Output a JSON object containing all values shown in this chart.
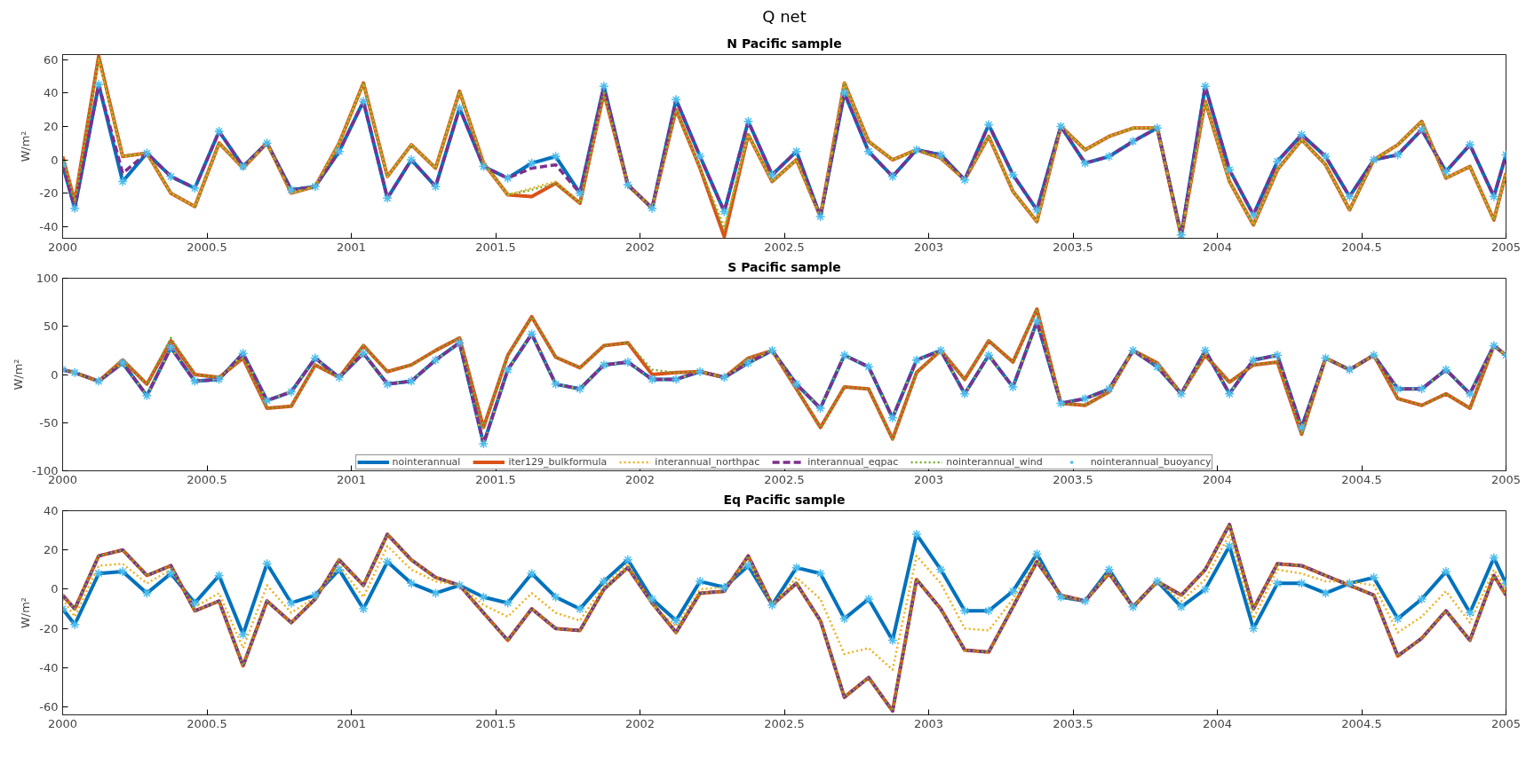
{
  "chart_data": [
    {
      "type": "line",
      "title": "Q net",
      "subtitle": "N Pacific sample",
      "ylabel": "W/m²",
      "x": [
        2000,
        2000.042,
        2000.125,
        2000.208,
        2000.292,
        2000.375,
        2000.458,
        2000.542,
        2000.625,
        2000.708,
        2000.792,
        2000.875,
        2000.958,
        2001.042,
        2001.125,
        2001.208,
        2001.292,
        2001.375,
        2001.458,
        2001.542,
        2001.625,
        2001.708,
        2001.792,
        2001.875,
        2001.958,
        2002.042,
        2002.125,
        2002.208,
        2002.292,
        2002.375,
        2002.458,
        2002.542,
        2002.625,
        2002.708,
        2002.792,
        2002.875,
        2002.958,
        2003.042,
        2003.125,
        2003.208,
        2003.292,
        2003.375,
        2003.458,
        2003.542,
        2003.625,
        2003.708,
        2003.792,
        2003.875,
        2003.958,
        2004.042,
        2004.125,
        2004.208,
        2004.292,
        2004.375,
        2004.458,
        2004.542,
        2004.625,
        2004.708,
        2004.792,
        2004.875,
        2004.958,
        2005
      ],
      "xlim": [
        2000,
        2005
      ],
      "xticks": [
        2000,
        2000.5,
        2001,
        2001.5,
        2002,
        2002.5,
        2003,
        2003.5,
        2004,
        2004.5,
        2005
      ],
      "ylim": [
        -47,
        63
      ],
      "yticks": [
        -40,
        -20,
        0,
        20,
        40,
        60
      ],
      "grid": false,
      "series": [
        {
          "color": "#0072bd",
          "line_style": "solid",
          "values": [
            -3,
            -29,
            45,
            -13,
            4,
            -10,
            -17,
            17,
            -4,
            10,
            -18,
            -16,
            5,
            35,
            -23,
            0,
            -16,
            31,
            -4,
            -11,
            -2,
            2,
            -20,
            44,
            -15,
            -29,
            36,
            2,
            -31,
            23,
            -9,
            5,
            -34,
            40,
            5,
            -10,
            6,
            3,
            -12,
            21,
            -9,
            -30,
            20,
            -2,
            2,
            11,
            19,
            -45,
            44,
            -6,
            -33,
            -1,
            15,
            2,
            -22,
            0,
            3,
            18,
            -7,
            9,
            -22,
            3
          ]
        },
        {
          "color": "#d95319",
          "line_style": "solid",
          "values": [
            2,
            -25,
            62,
            2,
            4,
            -20,
            -28,
            10,
            -5,
            10,
            -20,
            -16,
            10,
            46,
            -10,
            9,
            -5,
            41,
            -2,
            -21,
            -22,
            -14,
            -26,
            40,
            -15,
            -29,
            30,
            -5,
            -46,
            15,
            -13,
            0,
            -34,
            46,
            11,
            0,
            6,
            1,
            -12,
            14,
            -19,
            -37,
            20,
            6,
            14,
            19,
            19,
            -46,
            35,
            -13,
            -39,
            -6,
            12,
            -3,
            -30,
            0,
            9,
            23,
            -11,
            -4,
            -36,
            -8
          ]
        },
        {
          "color": "#edb120",
          "line_style": "dotted",
          "values": [
            2,
            -25,
            60,
            2,
            4,
            -20,
            -28,
            10,
            -5,
            10,
            -20,
            -16,
            10,
            46,
            -10,
            9,
            -5,
            41,
            -2,
            -21,
            -17,
            -13,
            -26,
            40,
            -15,
            -29,
            30,
            -5,
            -40,
            15,
            -13,
            0,
            -34,
            46,
            11,
            0,
            6,
            1,
            -12,
            14,
            -19,
            -37,
            20,
            6,
            14,
            19,
            19,
            -46,
            35,
            -13,
            -39,
            -6,
            12,
            -3,
            -30,
            0,
            9,
            23,
            -11,
            -4,
            -36,
            -8
          ]
        },
        {
          "color": "#7e2f8e",
          "line_style": "dashed",
          "values": [
            -3,
            -29,
            45,
            -8,
            4,
            -10,
            -17,
            17,
            -4,
            10,
            -18,
            -16,
            5,
            35,
            -23,
            0,
            -16,
            31,
            -4,
            -11,
            -5,
            -3,
            -20,
            44,
            -15,
            -29,
            36,
            2,
            -31,
            23,
            -9,
            5,
            -34,
            40,
            5,
            -10,
            6,
            3,
            -12,
            21,
            -9,
            -30,
            20,
            -2,
            2,
            11,
            19,
            -45,
            44,
            -6,
            -33,
            -1,
            15,
            2,
            -22,
            0,
            3,
            18,
            -7,
            9,
            -22,
            3
          ]
        },
        {
          "color": "#77ac30",
          "line_style": "dotted",
          "values": [
            2,
            -25,
            62,
            2,
            4,
            -20,
            -28,
            10,
            -5,
            10,
            -20,
            -16,
            10,
            46,
            -10,
            9,
            -5,
            41,
            -2,
            -21,
            -18,
            -14,
            -26,
            40,
            -15,
            -29,
            30,
            -5,
            -42,
            15,
            -13,
            0,
            -34,
            46,
            11,
            0,
            6,
            1,
            -12,
            14,
            -19,
            -37,
            20,
            6,
            14,
            19,
            19,
            -46,
            35,
            -13,
            -39,
            -6,
            12,
            -3,
            -30,
            0,
            9,
            23,
            -11,
            -4,
            -36,
            -8
          ]
        },
        {
          "type": "scatter",
          "marker": "cross",
          "color": "#4dbeee",
          "values": [
            -3,
            -29,
            45,
            -13,
            4,
            -10,
            -17,
            17,
            -4,
            10,
            -18,
            -16,
            5,
            35,
            -23,
            0,
            -16,
            31,
            -4,
            -11,
            -2,
            2,
            -20,
            44,
            -15,
            -29,
            36,
            2,
            -31,
            23,
            -9,
            5,
            -34,
            40,
            5,
            -10,
            6,
            3,
            -12,
            21,
            -9,
            -30,
            20,
            -2,
            2,
            11,
            19,
            -45,
            44,
            -6,
            -33,
            -1,
            15,
            2,
            -22,
            0,
            3,
            18,
            -7,
            9,
            -22,
            3
          ]
        }
      ]
    },
    {
      "type": "line",
      "title": "S Pacific sample",
      "ylabel": "W/m²",
      "x": [
        2000,
        2000.042,
        2000.125,
        2000.208,
        2000.292,
        2000.375,
        2000.458,
        2000.542,
        2000.625,
        2000.708,
        2000.792,
        2000.875,
        2000.958,
        2001.042,
        2001.125,
        2001.208,
        2001.292,
        2001.375,
        2001.458,
        2001.542,
        2001.625,
        2001.708,
        2001.792,
        2001.875,
        2001.958,
        2002.042,
        2002.125,
        2002.208,
        2002.292,
        2002.375,
        2002.458,
        2002.542,
        2002.625,
        2002.708,
        2002.792,
        2002.875,
        2002.958,
        2003.042,
        2003.125,
        2003.208,
        2003.292,
        2003.375,
        2003.458,
        2003.542,
        2003.625,
        2003.708,
        2003.792,
        2003.875,
        2003.958,
        2004.042,
        2004.125,
        2004.208,
        2004.292,
        2004.375,
        2004.458,
        2004.542,
        2004.625,
        2004.708,
        2004.792,
        2004.875,
        2004.958,
        2005
      ],
      "xlim": [
        2000,
        2005
      ],
      "xticks": [
        2000,
        2000.5,
        2001,
        2001.5,
        2002,
        2002.5,
        2003,
        2003.5,
        2004,
        2004.5,
        2005
      ],
      "ylim": [
        -100,
        100
      ],
      "yticks": [
        -100,
        -50,
        0,
        50,
        100
      ],
      "grid": false,
      "legend": "bottom",
      "series": [
        {
          "name": "nointerannual",
          "color": "#0072bd",
          "line_style": "solid",
          "values": [
            5,
            2,
            -7,
            12,
            -22,
            28,
            -7,
            -5,
            22,
            -27,
            -18,
            17,
            -3,
            22,
            -10,
            -7,
            15,
            33,
            -72,
            5,
            42,
            -10,
            -15,
            10,
            13,
            -5,
            -5,
            3,
            -3,
            12,
            25,
            -10,
            -35,
            20,
            8,
            -45,
            15,
            25,
            -20,
            20,
            -13,
            55,
            -30,
            -25,
            -15,
            25,
            8,
            -20,
            25,
            -20,
            15,
            20,
            -55,
            17,
            5,
            20,
            -15,
            -15,
            5,
            -20,
            30,
            20
          ]
        },
        {
          "name": "iter129_bulkformula",
          "color": "#d95319",
          "line_style": "solid",
          "values": [
            5,
            2,
            -7,
            15,
            -10,
            35,
            0,
            -3,
            17,
            -35,
            -33,
            10,
            -3,
            30,
            3,
            10,
            25,
            38,
            -55,
            20,
            60,
            18,
            7,
            30,
            33,
            0,
            2,
            3,
            -3,
            17,
            25,
            -15,
            -55,
            -13,
            -15,
            -67,
            2,
            25,
            -5,
            35,
            13,
            68,
            -30,
            -32,
            -18,
            25,
            12,
            -20,
            20,
            -8,
            10,
            13,
            -62,
            17,
            5,
            20,
            -25,
            -32,
            -20,
            -35,
            30,
            20
          ]
        },
        {
          "name": "interannual_northpac",
          "color": "#edb120",
          "line_style": "dotted",
          "values": [
            5,
            2,
            -7,
            12,
            -22,
            28,
            -7,
            -5,
            22,
            -27,
            -18,
            17,
            -3,
            22,
            -10,
            -7,
            15,
            33,
            -72,
            5,
            42,
            -10,
            -15,
            10,
            13,
            -5,
            -5,
            3,
            -3,
            12,
            25,
            -10,
            -35,
            20,
            8,
            -45,
            15,
            25,
            -20,
            20,
            -13,
            55,
            -30,
            -25,
            -15,
            25,
            8,
            -20,
            25,
            -20,
            15,
            20,
            -55,
            17,
            5,
            20,
            -15,
            -15,
            5,
            -20,
            30,
            20
          ]
        },
        {
          "name": "interannual_eqpac",
          "color": "#7e2f8e",
          "line_style": "dashed",
          "values": [
            5,
            2,
            -7,
            12,
            -22,
            28,
            -7,
            -5,
            22,
            -27,
            -18,
            17,
            -3,
            22,
            -10,
            -7,
            15,
            33,
            -72,
            5,
            42,
            -10,
            -15,
            10,
            13,
            -5,
            -5,
            3,
            -3,
            12,
            25,
            -10,
            -35,
            20,
            8,
            -45,
            15,
            25,
            -20,
            20,
            -13,
            55,
            -30,
            -25,
            -15,
            25,
            8,
            -20,
            25,
            -20,
            15,
            20,
            -55,
            17,
            5,
            20,
            -15,
            -15,
            5,
            -20,
            30,
            20
          ]
        },
        {
          "name": "nointerannual_wind",
          "color": "#77ac30",
          "line_style": "dotted",
          "values": [
            5,
            2,
            -7,
            15,
            -10,
            38,
            0,
            -3,
            17,
            -35,
            -33,
            10,
            -3,
            30,
            3,
            10,
            25,
            38,
            -55,
            20,
            60,
            18,
            7,
            30,
            33,
            5,
            2,
            3,
            -3,
            17,
            25,
            -15,
            -55,
            -13,
            -15,
            -67,
            2,
            25,
            -5,
            35,
            13,
            68,
            -30,
            -32,
            -18,
            25,
            12,
            -20,
            20,
            -8,
            10,
            13,
            -62,
            17,
            5,
            20,
            -25,
            -32,
            -20,
            -35,
            30,
            20
          ]
        },
        {
          "name": "nointerannual_buoyancy",
          "type": "scatter",
          "marker": "cross",
          "color": "#4dbeee",
          "values": [
            5,
            2,
            -7,
            12,
            -22,
            28,
            -7,
            -5,
            22,
            -27,
            -18,
            17,
            -3,
            22,
            -10,
            -7,
            15,
            33,
            -72,
            5,
            42,
            -10,
            -15,
            10,
            13,
            -5,
            -5,
            3,
            -3,
            12,
            25,
            -10,
            -35,
            20,
            8,
            -45,
            15,
            25,
            -20,
            20,
            -13,
            55,
            -30,
            -25,
            -15,
            25,
            8,
            -20,
            25,
            -20,
            15,
            20,
            -55,
            17,
            5,
            20,
            -15,
            -15,
            5,
            -20,
            30,
            20
          ]
        }
      ]
    },
    {
      "type": "line",
      "title": "Eq Pacific sample",
      "ylabel": "W/m²",
      "x": [
        2000,
        2000.042,
        2000.125,
        2000.208,
        2000.292,
        2000.375,
        2000.458,
        2000.542,
        2000.625,
        2000.708,
        2000.792,
        2000.875,
        2000.958,
        2001.042,
        2001.125,
        2001.208,
        2001.292,
        2001.375,
        2001.458,
        2001.542,
        2001.625,
        2001.708,
        2001.792,
        2001.875,
        2001.958,
        2002.042,
        2002.125,
        2002.208,
        2002.292,
        2002.375,
        2002.458,
        2002.542,
        2002.625,
        2002.708,
        2002.792,
        2002.875,
        2002.958,
        2003.042,
        2003.125,
        2003.208,
        2003.292,
        2003.375,
        2003.458,
        2003.542,
        2003.625,
        2003.708,
        2003.792,
        2003.875,
        2003.958,
        2004.042,
        2004.125,
        2004.208,
        2004.292,
        2004.375,
        2004.458,
        2004.542,
        2004.625,
        2004.708,
        2004.792,
        2004.875,
        2004.958,
        2005
      ],
      "xlim": [
        2000,
        2005
      ],
      "xticks": [
        2000,
        2000.5,
        2001,
        2001.5,
        2002,
        2002.5,
        2003,
        2003.5,
        2004,
        2004.5,
        2005
      ],
      "ylim": [
        -64,
        40
      ],
      "yticks": [
        -60,
        -40,
        -20,
        0,
        20,
        40
      ],
      "grid": false,
      "series": [
        {
          "color": "#0072bd",
          "line_style": "solid",
          "values": [
            -10,
            -18,
            8,
            9,
            -2,
            8,
            -7,
            7,
            -23,
            13,
            -7,
            -3,
            10,
            -10,
            14,
            3,
            -2,
            2,
            -4,
            -7,
            8,
            -4,
            -10,
            4,
            15,
            -5,
            -16,
            4,
            1,
            12,
            -8,
            11,
            8,
            -15,
            -5,
            -26,
            28,
            10,
            -11,
            -11,
            -1,
            18,
            -4,
            -6,
            10,
            -9,
            4,
            -9,
            0,
            22,
            -20,
            3,
            3,
            -2,
            3,
            6,
            -15,
            -5,
            9,
            -12,
            16,
            3
          ]
        },
        {
          "color": "#d95319",
          "line_style": "solid",
          "values": [
            -3,
            -10,
            17,
            20,
            7,
            12,
            -11,
            -6,
            -39,
            -6,
            -17,
            -5,
            15,
            2,
            28,
            15,
            6,
            2,
            -12,
            -26,
            -10,
            -20,
            -21,
            0,
            11,
            -7,
            -22,
            -2,
            -1,
            17,
            -8,
            3,
            -16,
            -55,
            -45,
            -62,
            5,
            -10,
            -31,
            -32,
            -9,
            14,
            -3,
            -6,
            8,
            -9,
            4,
            -3,
            10,
            33,
            -10,
            13,
            12,
            7,
            2,
            -3,
            -34,
            -25,
            -11,
            -26,
            7,
            -3
          ]
        },
        {
          "color": "#edb120",
          "line_style": "dotted",
          "values": [
            -5,
            -14,
            12,
            13,
            3,
            10,
            -9,
            -2,
            -30,
            2,
            -12,
            -4,
            12,
            -4,
            22,
            10,
            4,
            2,
            -8,
            -14,
            -2,
            -12,
            -16,
            2,
            13,
            -8,
            -19,
            0,
            1,
            14,
            -8,
            6,
            -5,
            -33,
            -30,
            -41,
            17,
            3,
            -20,
            -21,
            -5,
            16,
            -4,
            -6,
            9,
            -9,
            4,
            -6,
            5,
            28,
            -15,
            10,
            8,
            4,
            4,
            2,
            -22,
            -14,
            -1,
            -17,
            10,
            0
          ]
        },
        {
          "color": "#7e2f8e",
          "line_style": "dashed",
          "values": [
            -3,
            -10,
            17,
            20,
            7,
            12,
            -11,
            -6,
            -39,
            -6,
            -17,
            -5,
            15,
            2,
            28,
            15,
            6,
            2,
            -12,
            -26,
            -10,
            -20,
            -21,
            0,
            11,
            -7,
            -22,
            -2,
            -1,
            17,
            -8,
            3,
            -16,
            -55,
            -45,
            -62,
            5,
            -10,
            -31,
            -32,
            -9,
            14,
            -3,
            -6,
            8,
            -9,
            4,
            -3,
            10,
            33,
            -10,
            13,
            12,
            7,
            2,
            -3,
            -34,
            -25,
            -11,
            -26,
            7,
            -3
          ]
        },
        {
          "color": "#77ac30",
          "line_style": "dotted",
          "values": [
            -3,
            -10,
            17,
            20,
            7,
            12,
            -11,
            -6,
            -39,
            -6,
            -17,
            -5,
            15,
            2,
            28,
            15,
            6,
            2,
            -12,
            -26,
            -10,
            -20,
            -21,
            0,
            11,
            -7,
            -22,
            -2,
            -1,
            17,
            -8,
            3,
            -16,
            -55,
            -45,
            -62,
            5,
            -10,
            -31,
            -32,
            -9,
            14,
            -3,
            -6,
            8,
            -9,
            4,
            -3,
            10,
            33,
            -10,
            13,
            12,
            7,
            2,
            -3,
            -34,
            -25,
            -11,
            -26,
            7,
            -3
          ]
        },
        {
          "type": "scatter",
          "marker": "cross",
          "color": "#4dbeee",
          "values": [
            -10,
            -18,
            8,
            9,
            -2,
            8,
            -7,
            7,
            -23,
            13,
            -7,
            -3,
            10,
            -10,
            14,
            3,
            -2,
            2,
            -4,
            -7,
            8,
            -4,
            -10,
            4,
            15,
            -5,
            -16,
            4,
            1,
            12,
            -8,
            11,
            8,
            -15,
            -5,
            -26,
            28,
            10,
            -11,
            -11,
            -1,
            18,
            -4,
            -6,
            10,
            -9,
            4,
            -9,
            0,
            22,
            -20,
            3,
            3,
            -2,
            3,
            6,
            -15,
            -5,
            9,
            -12,
            16,
            3
          ]
        }
      ]
    }
  ]
}
